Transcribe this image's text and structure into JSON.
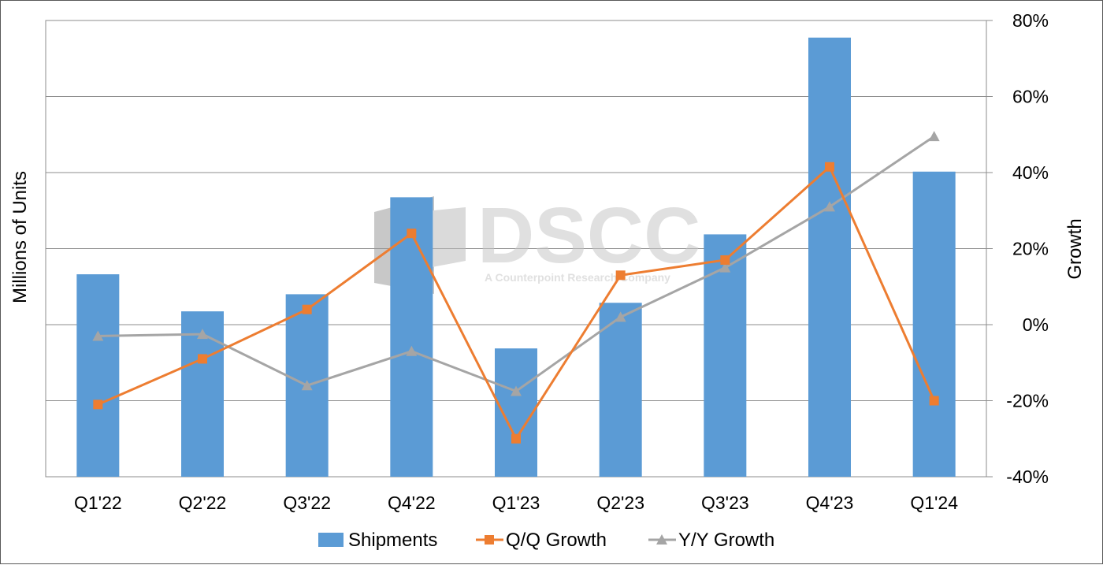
{
  "chart_data": {
    "type": "bar",
    "categories": [
      "Q1'22",
      "Q2'22",
      "Q3'22",
      "Q4'22",
      "Q1'23",
      "Q2'23",
      "Q3'23",
      "Q4'23",
      "Q1'24"
    ],
    "series": [
      {
        "name": "Shipments",
        "type": "bar",
        "axis": "left",
        "color": "#5b9bd5",
        "values": [
          35.5,
          29,
          32,
          49,
          22.5,
          30.5,
          42.5,
          77,
          53.5
        ]
      },
      {
        "name": "Q/Q Growth",
        "type": "line",
        "axis": "right",
        "color": "#ed7d31",
        "marker": "square",
        "values": [
          -21,
          -9,
          4,
          24,
          -30,
          13,
          17,
          41.5,
          -20
        ]
      },
      {
        "name": "Y/Y Growth",
        "type": "line",
        "axis": "right",
        "color": "#a5a5a5",
        "marker": "triangle",
        "values": [
          -3,
          -2.5,
          -16,
          -7,
          -17.5,
          2,
          15,
          31,
          49.5
        ]
      }
    ],
    "ylabel_left": "Millions of Units",
    "ylabel_right": "Growth",
    "ylim_left": [
      0,
      80
    ],
    "ylim_right": [
      -40,
      80
    ],
    "right_ticks": [
      "80%",
      "60%",
      "40%",
      "20%",
      "0%",
      "-20%",
      "-40%"
    ],
    "grid": true,
    "legend": "bottom"
  },
  "watermark": {
    "logo_text": "DSCC",
    "tagline": "A Counterpoint Research Company"
  }
}
